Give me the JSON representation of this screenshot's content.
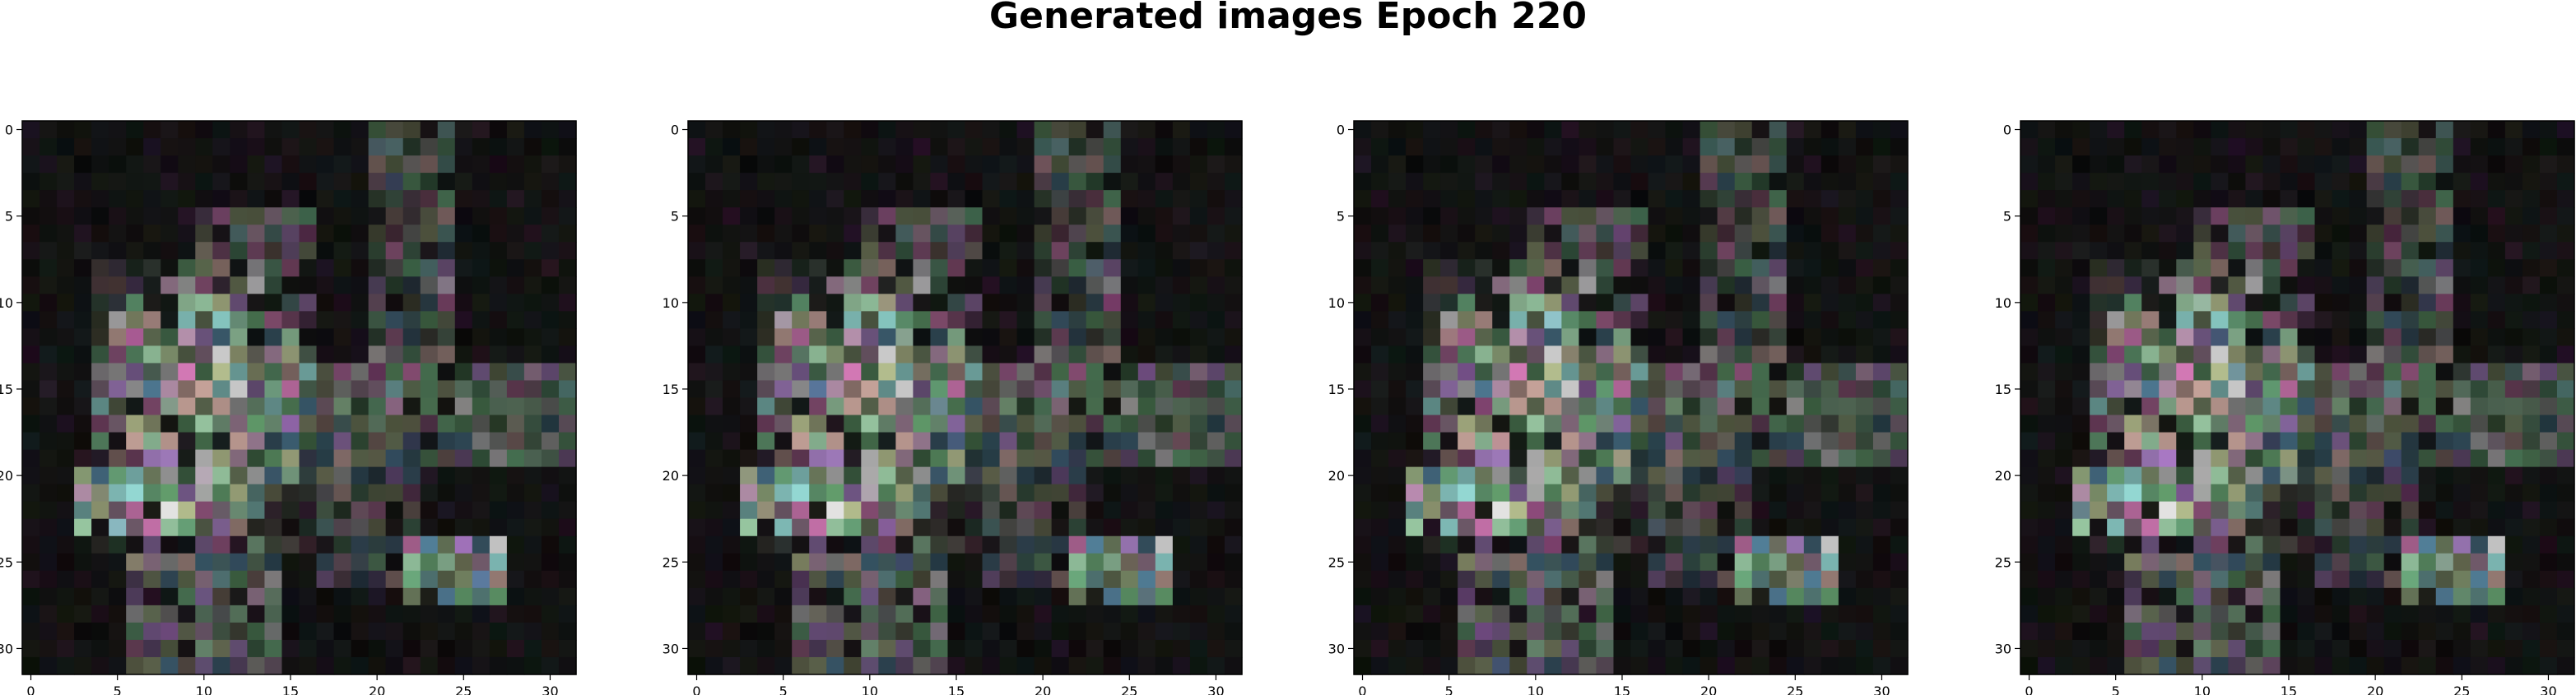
{
  "figure": {
    "title": "Generated images Epoch 220"
  },
  "chart_data": [
    {
      "type": "heatmap",
      "grid": [
        32,
        32
      ],
      "xlim": [
        0,
        31
      ],
      "ylim": [
        31,
        0
      ],
      "xticks": [
        0,
        5,
        10,
        15,
        20,
        25,
        30
      ],
      "yticks": [
        0,
        5,
        10,
        15,
        20,
        25,
        30
      ],
      "grid_lines": false
    },
    {
      "type": "heatmap",
      "grid": [
        32,
        32
      ],
      "xlim": [
        0,
        31
      ],
      "ylim": [
        31,
        0
      ],
      "xticks": [
        0,
        5,
        10,
        15,
        20,
        25,
        30
      ],
      "yticks": [
        0,
        5,
        10,
        15,
        20,
        25,
        30
      ],
      "grid_lines": false
    },
    {
      "type": "heatmap",
      "grid": [
        32,
        32
      ],
      "xlim": [
        0,
        31
      ],
      "ylim": [
        31,
        0
      ],
      "xticks": [
        0,
        5,
        10,
        15,
        20,
        25,
        30
      ],
      "yticks": [
        0,
        5,
        10,
        15,
        20,
        25,
        30
      ],
      "grid_lines": false
    },
    {
      "type": "heatmap",
      "grid": [
        32,
        32
      ],
      "xlim": [
        0,
        31
      ],
      "ylim": [
        31,
        0
      ],
      "xticks": [
        0,
        5,
        10,
        15,
        20,
        25,
        30
      ],
      "yticks": [
        0,
        5,
        10,
        15,
        20,
        25,
        30
      ],
      "grid_lines": false
    }
  ]
}
